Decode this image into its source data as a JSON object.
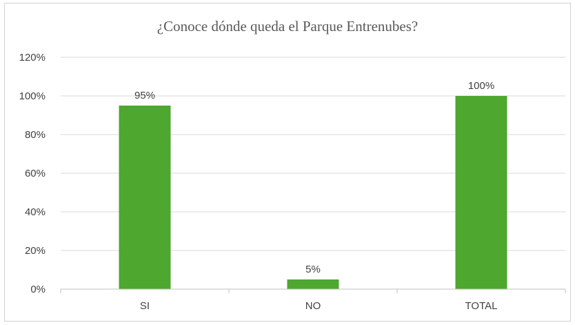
{
  "chart_data": {
    "type": "bar",
    "title": "¿Conoce dónde queda el Parque Entrenubes?",
    "categories": [
      "SI",
      "NO",
      "TOTAL"
    ],
    "values": [
      95,
      5,
      100
    ],
    "data_labels": [
      "95%",
      "5%",
      "100%"
    ],
    "ylim": [
      0,
      120
    ],
    "yticks": [
      0,
      20,
      40,
      60,
      80,
      100,
      120
    ],
    "ytick_labels": [
      "0%",
      "20%",
      "40%",
      "60%",
      "80%",
      "100%",
      "120%"
    ],
    "xlabel": "",
    "ylabel": "",
    "grid": true,
    "legend": "none",
    "bar_color": "#4ea72e",
    "grid_color": "#d9d9d9"
  }
}
